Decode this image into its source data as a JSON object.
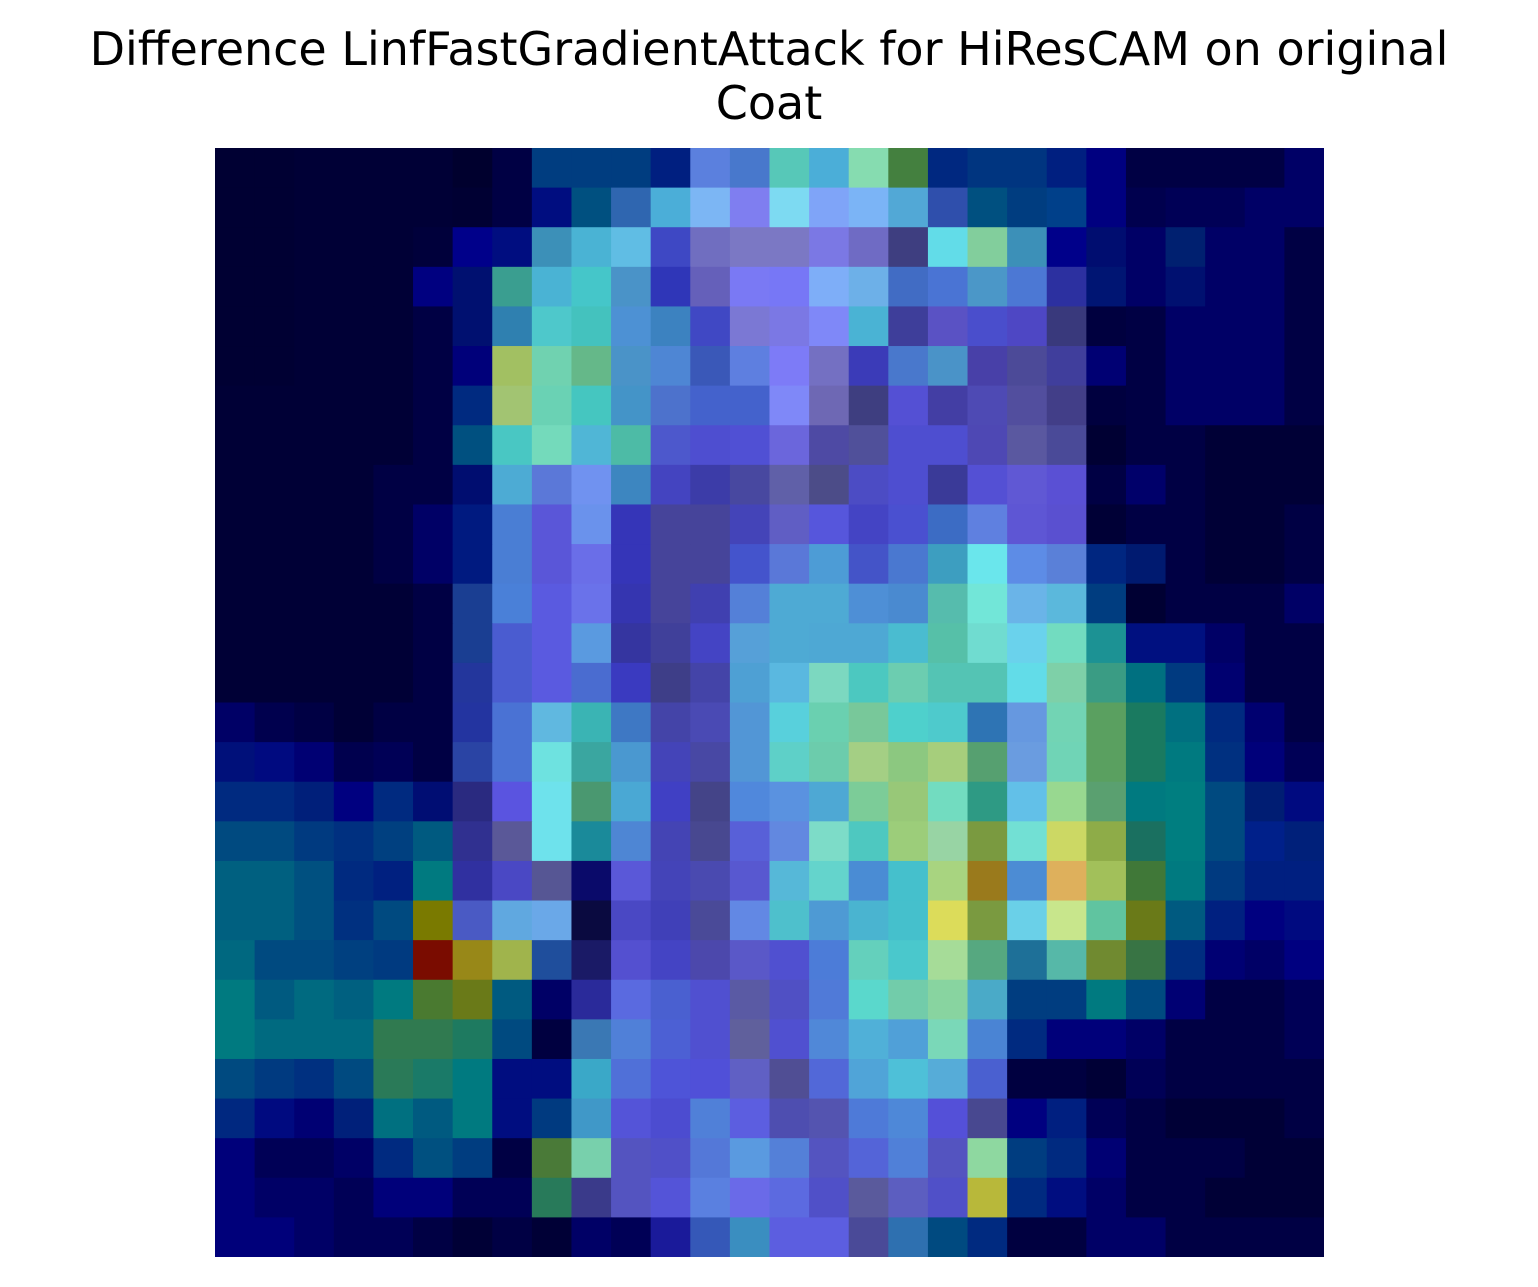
{
  "chart_data": {
    "type": "heatmap",
    "title_lines": [
      "Difference LinfFastGradientAttack for HiResCAM on original",
      "Coat"
    ],
    "xlabel": "",
    "ylabel": "",
    "axes_visible": false,
    "grid": false,
    "legend": "none",
    "rows": 28,
    "cols": 28,
    "colormap": [
      "#00007f",
      "#0000ff",
      "#00ffff",
      "#7fff7f",
      "#ffff00",
      "#ff7f00",
      "#7f0000"
    ],
    "background_color": "#000033",
    "cells": [
      [
        "#000033",
        "#000033",
        "#000036",
        "#000036",
        "#000036",
        "#000036",
        "#00002e",
        "#000044",
        "#003d80",
        "#003d80",
        "#003d80",
        "#001f80",
        "#5b80de",
        "#4878cc",
        "#57c8b8",
        "#4baed8",
        "#86dcb0",
        "#44803f",
        "#002880",
        "#003580",
        "#003580",
        "#001f80",
        "#000080",
        "#000044",
        "#000044",
        "#000044",
        "#000044",
        "#000066"
      ],
      [
        "#000033",
        "#000033",
        "#000036",
        "#000036",
        "#000036",
        "#000036",
        "#000033",
        "#000044",
        "#000d80",
        "#005080",
        "#2f66b0",
        "#4baed8",
        "#7cb6f4",
        "#7f7ef0",
        "#7ddaf2",
        "#7fa4f8",
        "#7bb4f6",
        "#52a8d6",
        "#2f4fac",
        "#005080",
        "#003d80",
        "#00408a",
        "#000080",
        "#00004e",
        "#000056",
        "#000056",
        "#000066",
        "#000066"
      ],
      [
        "#000033",
        "#000033",
        "#000036",
        "#000036",
        "#000036",
        "#00003b",
        "#00008a",
        "#000d80",
        "#3c90b8",
        "#4ab3d4",
        "#60bde4",
        "#3e48c4",
        "#706ec0",
        "#7b78c4",
        "#7b78c4",
        "#7b78e4",
        "#6f6bc4",
        "#3e3e80",
        "#62dce8",
        "#82ce9c",
        "#3c90b8",
        "#00008a",
        "#000d70",
        "#000066",
        "#002070",
        "#000066",
        "#000066",
        "#000044"
      ],
      [
        "#000033",
        "#000033",
        "#000036",
        "#000036",
        "#000036",
        "#000080",
        "#001070",
        "#3a9e90",
        "#4ab3d4",
        "#45c6c9",
        "#4a93c8",
        "#2f36b8",
        "#6560ba",
        "#7a79f4",
        "#7777f6",
        "#7eaef8",
        "#6db0e8",
        "#416cc4",
        "#4a74d4",
        "#4b97c8",
        "#4c78d4",
        "#2c30a0",
        "#001573",
        "#000066",
        "#001070",
        "#000066",
        "#000066",
        "#000044"
      ],
      [
        "#000033",
        "#000033",
        "#000036",
        "#000036",
        "#000036",
        "#000044",
        "#001070",
        "#2f80b0",
        "#4ec8cb",
        "#44c2be",
        "#4d91d4",
        "#3c82c0",
        "#4048c4",
        "#7b78d4",
        "#7b78e4",
        "#7f88f8",
        "#4ab3d4",
        "#3e3e9a",
        "#5a52c4",
        "#4a4ecc",
        "#4e47c4",
        "#39397c",
        "#00003f",
        "#000044",
        "#000066",
        "#000066",
        "#000066",
        "#000044"
      ],
      [
        "#000033",
        "#000033",
        "#000036",
        "#000036",
        "#000036",
        "#000044",
        "#00007a",
        "#a2c062",
        "#70d2b0",
        "#65b889",
        "#4a93c8",
        "#4e86d4",
        "#3a58b8",
        "#5e7fe0",
        "#7d7bf7",
        "#7470c2",
        "#3b3bb8",
        "#4978cc",
        "#4a93c8",
        "#4840a8",
        "#4c4a98",
        "#403e9c",
        "#000073",
        "#000044",
        "#000066",
        "#000066",
        "#000066",
        "#000044"
      ],
      [
        "#000036",
        "#000036",
        "#000036",
        "#000036",
        "#000036",
        "#000044",
        "#002a80",
        "#a2c472",
        "#6ad2b4",
        "#45c6c0",
        "#4494c8",
        "#4d72cc",
        "#4462cc",
        "#4462cc",
        "#7f88f8",
        "#6e68b4",
        "#3e3e80",
        "#5450d4",
        "#433ea4",
        "#4e4ab4",
        "#524e9e",
        "#423e88",
        "#00003f",
        "#000044",
        "#000066",
        "#000066",
        "#000066",
        "#000044"
      ],
      [
        "#000036",
        "#000036",
        "#000036",
        "#000036",
        "#000036",
        "#000044",
        "#005080",
        "#49c7c3",
        "#74dabb",
        "#50b6d6",
        "#4dbba6",
        "#4d58cc",
        "#4e4ed0",
        "#5050d4",
        "#6b66dc",
        "#4e4aa4",
        "#50509a",
        "#4e4ed0",
        "#4e4ed0",
        "#4e48b4",
        "#5a58a0",
        "#4a4a98",
        "#000033",
        "#000044",
        "#000044",
        "#000036",
        "#000036",
        "#000036"
      ],
      [
        "#000036",
        "#000036",
        "#000036",
        "#000036",
        "#000044",
        "#000044",
        "#000d70",
        "#4dabd4",
        "#5b78d8",
        "#7092f0",
        "#3d86c0",
        "#4444c0",
        "#3c3ca8",
        "#4848a0",
        "#6060a8",
        "#4c4c88",
        "#4c4cc4",
        "#4e4ed0",
        "#3a3a98",
        "#5450d4",
        "#6058d4",
        "#5a50d4",
        "#000044",
        "#00006a",
        "#000044",
        "#000036",
        "#000036",
        "#000036"
      ],
      [
        "#000036",
        "#000036",
        "#000036",
        "#000036",
        "#000044",
        "#000066",
        "#001a80",
        "#4a7ed4",
        "#5a56d8",
        "#6a92ec",
        "#3535b8",
        "#46449a",
        "#46449a",
        "#4444b8",
        "#605ec4",
        "#5656dc",
        "#4444c4",
        "#4a50d0",
        "#3c6cc4",
        "#5f80e0",
        "#5e56d4",
        "#5a50d0",
        "#000036",
        "#000044",
        "#000044",
        "#000036",
        "#000036",
        "#000044"
      ],
      [
        "#000036",
        "#000036",
        "#000036",
        "#000036",
        "#000044",
        "#000066",
        "#001a80",
        "#4a7ed4",
        "#5a56d8",
        "#6a6ee8",
        "#3535b8",
        "#46449a",
        "#46449a",
        "#4454cc",
        "#5a78d8",
        "#4d9cd6",
        "#4454c8",
        "#4a78d0",
        "#3d9ec0",
        "#6ae6ec",
        "#5d8ce6",
        "#5a80d8",
        "#002680",
        "#001a70",
        "#000044",
        "#000036",
        "#000036",
        "#000044"
      ],
      [
        "#000036",
        "#000036",
        "#000036",
        "#000036",
        "#000036",
        "#000044",
        "#1a3e92",
        "#4a80d8",
        "#5a5ae0",
        "#6a72ea",
        "#3535b0",
        "#46449a",
        "#4040b0",
        "#5480d8",
        "#4eaad4",
        "#4eaad4",
        "#4e8fd6",
        "#4a8ad0",
        "#56bcad",
        "#72e6d8",
        "#6ab4e8",
        "#5bb8dc",
        "#003d80",
        "#000033",
        "#000044",
        "#000044",
        "#000044",
        "#000066"
      ],
      [
        "#000036",
        "#000036",
        "#000036",
        "#000036",
        "#000036",
        "#000044",
        "#1a3e92",
        "#4a5cd0",
        "#5a5ae0",
        "#5a9ae0",
        "#3535a0",
        "#40409a",
        "#4444c4",
        "#56a0d8",
        "#4eaad4",
        "#4ea8d4",
        "#4ea8d4",
        "#4abcd0",
        "#56c0a8",
        "#70dcd0",
        "#6ad2ec",
        "#72dcc0",
        "#1c9294",
        "#001080",
        "#001080",
        "#000066",
        "#000044",
        "#000044"
      ],
      [
        "#000036",
        "#000036",
        "#000036",
        "#000036",
        "#000036",
        "#000044",
        "#23369c",
        "#4a5cd0",
        "#5a5ae0",
        "#4a6cd0",
        "#3a3ac0",
        "#3e3e88",
        "#4444a8",
        "#4ea0d4",
        "#5ab8e0",
        "#7cd8c0",
        "#4cc8c0",
        "#6ccdb0",
        "#54c4b4",
        "#54c4b4",
        "#62dce8",
        "#7ed0a8",
        "#3a9c84",
        "#007080",
        "#003a80",
        "#000070",
        "#000044",
        "#000044"
      ],
      [
        "#000066",
        "#00004e",
        "#000044",
        "#000036",
        "#000044",
        "#000044",
        "#2334a0",
        "#4a72d4",
        "#60b8e0",
        "#3ab4b4",
        "#3e78c4",
        "#4444a8",
        "#4a4ab4",
        "#5296d6",
        "#58d0dc",
        "#6ad0b0",
        "#78c89a",
        "#4ed0cc",
        "#4ecacc",
        "#2e74b4",
        "#6698e0",
        "#72d4b4",
        "#5aa060",
        "#1a7a60",
        "#007080",
        "#002a80",
        "#000070",
        "#000044"
      ],
      [
        "#00107a",
        "#000a80",
        "#000073",
        "#00004e",
        "#000056",
        "#000044",
        "#2a44a4",
        "#4a72d4",
        "#6ee2e0",
        "#3aa6a0",
        "#4a98d0",
        "#4444b8",
        "#4848a4",
        "#5296d6",
        "#5ed0c8",
        "#6cccac",
        "#a4cf84",
        "#8cc880",
        "#a6ce7c",
        "#56a070",
        "#6a9ce0",
        "#70d4b6",
        "#5aa060",
        "#1a7a60",
        "#007a80",
        "#003080",
        "#00007a",
        "#000056"
      ],
      [
        "#002a80",
        "#002a80",
        "#001f7a",
        "#000080",
        "#002a80",
        "#000d73",
        "#2a2a80",
        "#5a54e0",
        "#6ee2ec",
        "#4a9870",
        "#4aa8d4",
        "#4040c4",
        "#444488",
        "#5088dc",
        "#5a92e0",
        "#4ea8d4",
        "#7ccc98",
        "#98c878",
        "#72dcc0",
        "#2e9a84",
        "#62c0e8",
        "#98d890",
        "#5aa070",
        "#007a80",
        "#007e80",
        "#004a80",
        "#001d73",
        "#000a80"
      ],
      [
        "#004a80",
        "#004a80",
        "#003a80",
        "#003080",
        "#004080",
        "#005a80",
        "#303090",
        "#5a5898",
        "#6ee2ec",
        "#1a8a9a",
        "#4e86d4",
        "#4444b4",
        "#484890",
        "#5860d8",
        "#6288e0",
        "#7ddcc8",
        "#4ec8c0",
        "#9ccd7a",
        "#98d4a4",
        "#7a9a40",
        "#72e0d4",
        "#ccd864",
        "#8eac48",
        "#1a7060",
        "#007e80",
        "#004a80",
        "#00208a",
        "#00207a"
      ],
      [
        "#006080",
        "#006080",
        "#005080",
        "#002a80",
        "#002080",
        "#007a80",
        "#3030a0",
        "#4a48c4",
        "#565694",
        "#0a0a6a",
        "#5a58d8",
        "#4444b8",
        "#4a4ab0",
        "#5858d0",
        "#56b8d8",
        "#64d4cc",
        "#4a8cd4",
        "#45c0cc",
        "#a8d480",
        "#9a7a1c",
        "#4c8cd4",
        "#deb05c",
        "#a2c05a",
        "#407838",
        "#007a80",
        "#003a80",
        "#001f80",
        "#001f80"
      ],
      [
        "#006080",
        "#006080",
        "#005080",
        "#003080",
        "#004a80",
        "#7a7a00",
        "#4a5ac4",
        "#60a8e0",
        "#6aa8e8",
        "#0a0a40",
        "#4a48c4",
        "#4040b8",
        "#4a4a98",
        "#6288e4",
        "#4ec0cc",
        "#4e9ad4",
        "#4ab4d0",
        "#45c0cc",
        "#dcdc5a",
        "#7a9a40",
        "#6ad0e8",
        "#c8e68c",
        "#60c4a0",
        "#6a7a18",
        "#005a80",
        "#002080",
        "#000080",
        "#000a80"
      ],
      [
        "#006880",
        "#004a80",
        "#004a80",
        "#004080",
        "#003a80",
        "#7a0c00",
        "#988818",
        "#a0b44c",
        "#1f4e9c",
        "#1a1a66",
        "#5450d0",
        "#4444c4",
        "#4c48ac",
        "#5a58c8",
        "#5050d0",
        "#4c7cd8",
        "#64d0bc",
        "#4ac8cc",
        "#a6dc98",
        "#56a880",
        "#1e7098",
        "#56b8a8",
        "#708a30",
        "#387444",
        "#002d80",
        "#000073",
        "#000066",
        "#000080"
      ],
      [
        "#007a80",
        "#005a80",
        "#006a80",
        "#006080",
        "#007a80",
        "#4a7a30",
        "#6a7a18",
        "#005a80",
        "#000066",
        "#2a2a9a",
        "#5a6ae0",
        "#4a60d0",
        "#5050d0",
        "#5a5aa4",
        "#5050c4",
        "#507ad8",
        "#5ad8cc",
        "#72ccaa",
        "#88d4a0",
        "#4aaac8",
        "#003d80",
        "#003d80",
        "#007a80",
        "#004a80",
        "#000073",
        "#000044",
        "#000044",
        "#000056"
      ],
      [
        "#007a80",
        "#006a80",
        "#006a80",
        "#006a80",
        "#307a50",
        "#307a50",
        "#1e7a60",
        "#004a80",
        "#000040",
        "#3a78b4",
        "#5080d8",
        "#4c60d4",
        "#5050d0",
        "#60609c",
        "#5050d0",
        "#5088d8",
        "#50b0d8",
        "#50a0d8",
        "#7ad8b8",
        "#4a84d4",
        "#002a80",
        "#00007a",
        "#00007a",
        "#000066",
        "#000044",
        "#000044",
        "#000044",
        "#000056"
      ],
      [
        "#004a80",
        "#003a80",
        "#003080",
        "#004a80",
        "#2a7a58",
        "#1a7a68",
        "#007a80",
        "#000d80",
        "#000d80",
        "#3aa8c8",
        "#5070d8",
        "#4e54d8",
        "#5050d8",
        "#6060c4",
        "#504e94",
        "#5268d8",
        "#50a4d8",
        "#4ec0d8",
        "#56acd8",
        "#4a60d0",
        "#000040",
        "#000040",
        "#000036",
        "#000056",
        "#000044",
        "#000044",
        "#000044",
        "#000044"
      ],
      [
        "#002880",
        "#000a80",
        "#000073",
        "#00207a",
        "#007080",
        "#005a80",
        "#007a80",
        "#000d80",
        "#003a80",
        "#4098c8",
        "#5454d8",
        "#4c4cd0",
        "#5080d8",
        "#5c5ee0",
        "#4e4eb0",
        "#5454b0",
        "#4e7ad8",
        "#4e88d8",
        "#5450d8",
        "#484890",
        "#000080",
        "#001f80",
        "#000056",
        "#000044",
        "#000036",
        "#000036",
        "#000036",
        "#000044"
      ],
      [
        "#00007a",
        "#000056",
        "#000056",
        "#000066",
        "#002a80",
        "#005080",
        "#003d80",
        "#000044",
        "#4a7a38",
        "#78d0ac",
        "#5454c0",
        "#5050c8",
        "#5478d8",
        "#5a9ae0",
        "#5480d8",
        "#5454c0",
        "#5464d8",
        "#5080d8",
        "#5454c0",
        "#8ed8a0",
        "#003d80",
        "#002a80",
        "#000073",
        "#000044",
        "#000044",
        "#000044",
        "#000036",
        "#000036"
      ],
      [
        "#00007a",
        "#000066",
        "#000066",
        "#000056",
        "#00007a",
        "#00007a",
        "#000056",
        "#000056",
        "#287a5a",
        "#3a3a8a",
        "#5454c0",
        "#5454d8",
        "#5a80e0",
        "#6a6ae8",
        "#5c6ae0",
        "#5050c8",
        "#5a5a9c",
        "#5c5ec0",
        "#5050c8",
        "#b8b83a",
        "#002a80",
        "#000d80",
        "#000066",
        "#000044",
        "#000044",
        "#000036",
        "#000036",
        "#000036"
      ],
      [
        "#00007a",
        "#00007a",
        "#000066",
        "#000056",
        "#000056",
        "#000044",
        "#000036",
        "#000044",
        "#000036",
        "#000066",
        "#000056",
        "#1a1a9a",
        "#3558b8",
        "#3a8ec0",
        "#5c5ee0",
        "#5c5ee0",
        "#4a4a98",
        "#2e70b0",
        "#004a80",
        "#002a80",
        "#000040",
        "#000040",
        "#000066",
        "#000066",
        "#000044",
        "#000044",
        "#000044",
        "#000044"
      ]
    ]
  }
}
